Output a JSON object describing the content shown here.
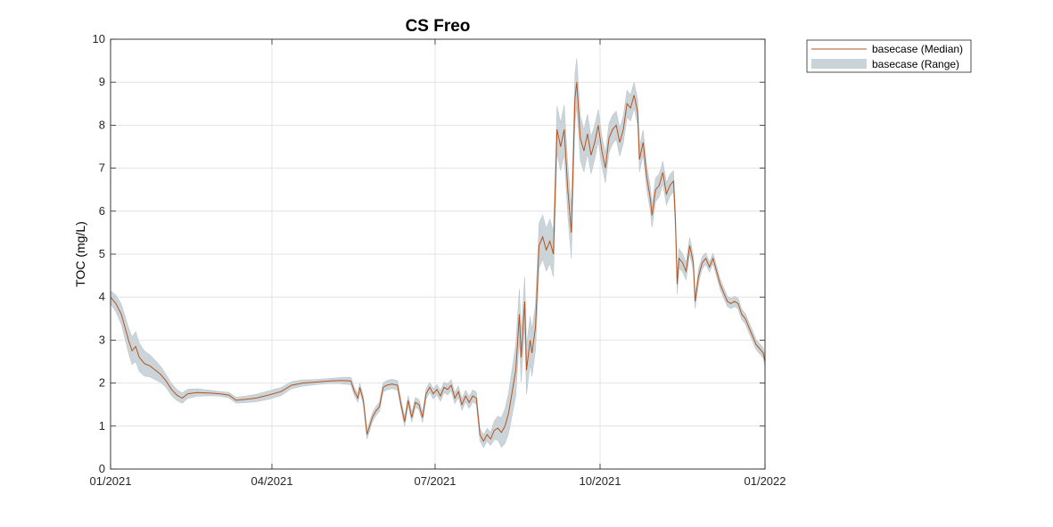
{
  "chart_data": {
    "type": "line",
    "title": "CS Freo",
    "xlabel": "",
    "ylabel": "TOC (mg/L)",
    "xlim": [
      "2021-01-01",
      "2022-01-01"
    ],
    "ylim": [
      0,
      10
    ],
    "grid": true,
    "legend_placement": "outside-top-right",
    "x_ticks": [
      {
        "date": "2021-01-01",
        "label": "01/2021"
      },
      {
        "date": "2021-04-01",
        "label": "04/2021"
      },
      {
        "date": "2021-07-01",
        "label": "07/2021"
      },
      {
        "date": "2021-10-01",
        "label": "10/2021"
      },
      {
        "date": "2022-01-01",
        "label": "01/2022"
      }
    ],
    "y_ticks": [
      0,
      1,
      2,
      3,
      4,
      5,
      6,
      7,
      8,
      9,
      10
    ],
    "series": [
      {
        "name": "basecase (Median)",
        "kind": "line",
        "color": "#b5541f",
        "points": [
          [
            "2021-01-01",
            4.0
          ],
          [
            "2021-01-04",
            3.85
          ],
          [
            "2021-01-07",
            3.6
          ],
          [
            "2021-01-09",
            3.3
          ],
          [
            "2021-01-11",
            3.0
          ],
          [
            "2021-01-13",
            2.75
          ],
          [
            "2021-01-15",
            2.85
          ],
          [
            "2021-01-17",
            2.6
          ],
          [
            "2021-01-20",
            2.45
          ],
          [
            "2021-01-23",
            2.4
          ],
          [
            "2021-01-26",
            2.3
          ],
          [
            "2021-01-29",
            2.2
          ],
          [
            "2021-02-01",
            2.05
          ],
          [
            "2021-02-04",
            1.85
          ],
          [
            "2021-02-07",
            1.72
          ],
          [
            "2021-02-10",
            1.65
          ],
          [
            "2021-02-13",
            1.75
          ],
          [
            "2021-02-18",
            1.78
          ],
          [
            "2021-02-25",
            1.77
          ],
          [
            "2021-03-03",
            1.75
          ],
          [
            "2021-03-08",
            1.72
          ],
          [
            "2021-03-12",
            1.6
          ],
          [
            "2021-03-17",
            1.62
          ],
          [
            "2021-03-23",
            1.65
          ],
          [
            "2021-03-30",
            1.72
          ],
          [
            "2021-04-06",
            1.8
          ],
          [
            "2021-04-12",
            1.95
          ],
          [
            "2021-04-18",
            2.0
          ],
          [
            "2021-04-25",
            2.02
          ],
          [
            "2021-05-03",
            2.05
          ],
          [
            "2021-05-10",
            2.06
          ],
          [
            "2021-05-15",
            2.05
          ],
          [
            "2021-05-17",
            1.8
          ],
          [
            "2021-05-19",
            1.65
          ],
          [
            "2021-05-20",
            1.9
          ],
          [
            "2021-05-22",
            1.6
          ],
          [
            "2021-05-24",
            0.8
          ],
          [
            "2021-05-27",
            1.2
          ],
          [
            "2021-05-29",
            1.35
          ],
          [
            "2021-05-31",
            1.45
          ],
          [
            "2021-06-02",
            1.9
          ],
          [
            "2021-06-04",
            1.95
          ],
          [
            "2021-06-07",
            1.98
          ],
          [
            "2021-06-10",
            1.95
          ],
          [
            "2021-06-12",
            1.5
          ],
          [
            "2021-06-14",
            1.1
          ],
          [
            "2021-06-16",
            1.6
          ],
          [
            "2021-06-18",
            1.2
          ],
          [
            "2021-06-20",
            1.55
          ],
          [
            "2021-06-22",
            1.5
          ],
          [
            "2021-06-24",
            1.2
          ],
          [
            "2021-06-26",
            1.75
          ],
          [
            "2021-06-28",
            1.9
          ],
          [
            "2021-06-30",
            1.75
          ],
          [
            "2021-07-02",
            1.85
          ],
          [
            "2021-07-04",
            1.7
          ],
          [
            "2021-07-06",
            1.9
          ],
          [
            "2021-07-08",
            1.85
          ],
          [
            "2021-07-10",
            1.95
          ],
          [
            "2021-07-12",
            1.65
          ],
          [
            "2021-07-14",
            1.8
          ],
          [
            "2021-07-16",
            1.5
          ],
          [
            "2021-07-18",
            1.7
          ],
          [
            "2021-07-20",
            1.55
          ],
          [
            "2021-07-22",
            1.7
          ],
          [
            "2021-07-24",
            1.65
          ],
          [
            "2021-07-26",
            0.8
          ],
          [
            "2021-07-28",
            0.65
          ],
          [
            "2021-07-30",
            0.8
          ],
          [
            "2021-08-01",
            0.7
          ],
          [
            "2021-08-03",
            0.9
          ],
          [
            "2021-08-05",
            0.95
          ],
          [
            "2021-08-07",
            0.85
          ],
          [
            "2021-08-09",
            1.0
          ],
          [
            "2021-08-11",
            1.3
          ],
          [
            "2021-08-13",
            1.8
          ],
          [
            "2021-08-15",
            2.3
          ],
          [
            "2021-08-17",
            3.6
          ],
          [
            "2021-08-18",
            2.6
          ],
          [
            "2021-08-20",
            3.9
          ],
          [
            "2021-08-21",
            2.3
          ],
          [
            "2021-08-23",
            3.0
          ],
          [
            "2021-08-24",
            2.7
          ],
          [
            "2021-08-26",
            3.3
          ],
          [
            "2021-08-28",
            5.2
          ],
          [
            "2021-08-30",
            5.4
          ],
          [
            "2021-09-01",
            5.1
          ],
          [
            "2021-09-03",
            5.3
          ],
          [
            "2021-09-05",
            5.0
          ],
          [
            "2021-09-07",
            7.9
          ],
          [
            "2021-09-09",
            7.5
          ],
          [
            "2021-09-11",
            7.9
          ],
          [
            "2021-09-13",
            6.5
          ],
          [
            "2021-09-15",
            5.5
          ],
          [
            "2021-09-17",
            8.6
          ],
          [
            "2021-09-18",
            9.0
          ],
          [
            "2021-09-20",
            7.7
          ],
          [
            "2021-09-22",
            7.4
          ],
          [
            "2021-09-24",
            7.8
          ],
          [
            "2021-09-26",
            7.3
          ],
          [
            "2021-09-28",
            7.6
          ],
          [
            "2021-09-30",
            8.0
          ],
          [
            "2021-10-02",
            7.4
          ],
          [
            "2021-10-04",
            7.0
          ],
          [
            "2021-10-06",
            7.7
          ],
          [
            "2021-10-08",
            7.9
          ],
          [
            "2021-10-10",
            8.0
          ],
          [
            "2021-10-12",
            7.6
          ],
          [
            "2021-10-14",
            7.9
          ],
          [
            "2021-10-16",
            8.5
          ],
          [
            "2021-10-18",
            8.4
          ],
          [
            "2021-10-20",
            8.7
          ],
          [
            "2021-10-22",
            8.3
          ],
          [
            "2021-10-23",
            7.2
          ],
          [
            "2021-10-25",
            7.6
          ],
          [
            "2021-10-27",
            6.8
          ],
          [
            "2021-10-29",
            6.3
          ],
          [
            "2021-10-30",
            5.9
          ],
          [
            "2021-11-01",
            6.5
          ],
          [
            "2021-11-03",
            6.6
          ],
          [
            "2021-11-05",
            6.9
          ],
          [
            "2021-11-07",
            6.4
          ],
          [
            "2021-11-09",
            6.6
          ],
          [
            "2021-11-11",
            6.7
          ],
          [
            "2021-11-12",
            5.8
          ],
          [
            "2021-11-13",
            4.3
          ],
          [
            "2021-11-14",
            4.9
          ],
          [
            "2021-11-16",
            4.8
          ],
          [
            "2021-11-18",
            4.6
          ],
          [
            "2021-11-20",
            5.2
          ],
          [
            "2021-11-22",
            4.8
          ],
          [
            "2021-11-23",
            3.9
          ],
          [
            "2021-11-25",
            4.5
          ],
          [
            "2021-11-27",
            4.8
          ],
          [
            "2021-11-29",
            4.9
          ],
          [
            "2021-12-01",
            4.7
          ],
          [
            "2021-12-03",
            4.9
          ],
          [
            "2021-12-05",
            4.6
          ],
          [
            "2021-12-07",
            4.3
          ],
          [
            "2021-12-09",
            4.1
          ],
          [
            "2021-12-11",
            3.9
          ],
          [
            "2021-12-13",
            3.85
          ],
          [
            "2021-12-15",
            3.9
          ],
          [
            "2021-12-17",
            3.85
          ],
          [
            "2021-12-19",
            3.6
          ],
          [
            "2021-12-21",
            3.5
          ],
          [
            "2021-12-23",
            3.3
          ],
          [
            "2021-12-25",
            3.1
          ],
          [
            "2021-12-27",
            2.9
          ],
          [
            "2021-12-29",
            2.8
          ],
          [
            "2021-12-31",
            2.7
          ],
          [
            "2022-01-01",
            2.5
          ]
        ]
      },
      {
        "name": "basecase (Range)",
        "kind": "band",
        "color": "#c9d3d8",
        "spread": [
          [
            "2021-01-01",
            0.15
          ],
          [
            "2021-01-15",
            0.35
          ],
          [
            "2021-02-01",
            0.15
          ],
          [
            "2021-03-01",
            0.05
          ],
          [
            "2021-04-01",
            0.1
          ],
          [
            "2021-05-01",
            0.05
          ],
          [
            "2021-05-20",
            0.1
          ],
          [
            "2021-07-01",
            0.12
          ],
          [
            "2021-08-01",
            0.15
          ],
          [
            "2021-08-15",
            0.6
          ],
          [
            "2021-09-01",
            0.5
          ],
          [
            "2021-09-15",
            0.6
          ],
          [
            "2021-10-01",
            0.35
          ],
          [
            "2021-10-20",
            0.3
          ],
          [
            "2021-11-10",
            0.25
          ],
          [
            "2021-12-01",
            0.12
          ],
          [
            "2022-01-01",
            0.12
          ]
        ]
      }
    ]
  }
}
